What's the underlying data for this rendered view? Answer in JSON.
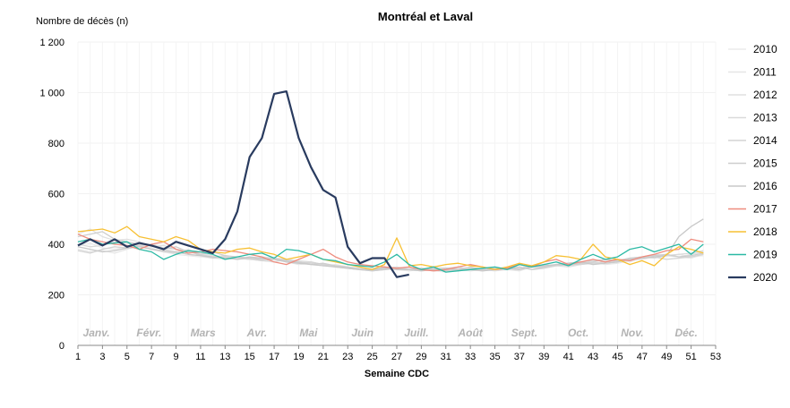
{
  "chart_data": {
    "type": "line",
    "title": "Montréal et Laval",
    "ylabel": "Nombre de décès (n)",
    "xlabel": "Semaine CDC",
    "xlim": [
      1,
      53
    ],
    "ylim": [
      0,
      1200
    ],
    "y_ticks": [
      "0",
      "200",
      "400",
      "600",
      "800",
      "1 000",
      "1 200"
    ],
    "y_tick_values": [
      0,
      200,
      400,
      600,
      800,
      1000,
      1200
    ],
    "x_ticks": [
      1,
      3,
      5,
      7,
      9,
      11,
      13,
      15,
      17,
      19,
      21,
      23,
      25,
      27,
      29,
      31,
      33,
      35,
      37,
      39,
      41,
      43,
      45,
      47,
      49,
      51,
      53
    ],
    "months": [
      {
        "label": "Janv.",
        "week": 2.5
      },
      {
        "label": "Févr.",
        "week": 6.8
      },
      {
        "label": "Mars",
        "week": 11.2
      },
      {
        "label": "Avr.",
        "week": 15.6
      },
      {
        "label": "Mai",
        "week": 19.8
      },
      {
        "label": "Juin",
        "week": 24.2
      },
      {
        "label": "Juill.",
        "week": 28.6
      },
      {
        "label": "Août",
        "week": 33.0
      },
      {
        "label": "Sept.",
        "week": 37.4
      },
      {
        "label": "Oct.",
        "week": 41.8
      },
      {
        "label": "Nov.",
        "week": 46.2
      },
      {
        "label": "Déc.",
        "week": 50.6
      }
    ],
    "legend_position": "right",
    "series": [
      {
        "name": "2010",
        "color": "#ebebeb",
        "values": [
          395,
          405,
          385,
          380,
          390,
          400,
          385,
          370,
          360,
          355,
          350,
          345,
          340,
          345,
          340,
          335,
          340,
          330,
          335,
          325,
          320,
          315,
          310,
          305,
          300,
          310,
          300,
          305,
          300,
          295,
          290,
          300,
          295,
          300,
          310,
          305,
          300,
          310,
          320,
          315,
          325,
          330,
          320,
          335,
          340,
          330,
          345,
          350,
          355,
          360,
          350,
          355
        ]
      },
      {
        "name": "2011",
        "color": "#e6e6e6",
        "values": [
          380,
          370,
          375,
          365,
          380,
          395,
          400,
          380,
          370,
          380,
          360,
          350,
          340,
          345,
          350,
          340,
          345,
          330,
          320,
          325,
          315,
          320,
          310,
          300,
          305,
          310,
          300,
          295,
          300,
          310,
          305,
          300,
          295,
          300,
          310,
          300,
          295,
          310,
          305,
          315,
          320,
          325,
          330,
          320,
          325,
          335,
          340,
          350,
          360,
          350,
          345,
          360
        ]
      },
      {
        "name": "2012",
        "color": "#e0e0e0",
        "values": [
          440,
          460,
          430,
          415,
          420,
          410,
          390,
          395,
          380,
          370,
          365,
          355,
          350,
          345,
          340,
          335,
          330,
          340,
          335,
          330,
          320,
          315,
          305,
          300,
          295,
          300,
          305,
          310,
          300,
          295,
          300,
          305,
          300,
          300,
          295,
          300,
          305,
          310,
          320,
          315,
          310,
          320,
          330,
          340,
          335,
          345,
          350,
          360,
          355,
          350,
          360,
          370
        ]
      },
      {
        "name": "2013",
        "color": "#dadada",
        "values": [
          400,
          390,
          395,
          410,
          405,
          395,
          400,
          385,
          380,
          375,
          360,
          350,
          355,
          345,
          340,
          350,
          345,
          340,
          330,
          325,
          320,
          315,
          310,
          305,
          300,
          305,
          310,
          300,
          295,
          300,
          305,
          310,
          300,
          295,
          300,
          310,
          305,
          315,
          310,
          320,
          325,
          330,
          335,
          340,
          330,
          340,
          350,
          345,
          355,
          360,
          365,
          375
        ]
      },
      {
        "name": "2014",
        "color": "#d4d4d4",
        "values": [
          375,
          365,
          380,
          390,
          385,
          395,
          380,
          370,
          365,
          375,
          355,
          345,
          350,
          340,
          345,
          335,
          340,
          335,
          325,
          330,
          320,
          310,
          305,
          300,
          300,
          310,
          305,
          300,
          300,
          305,
          300,
          295,
          305,
          300,
          305,
          300,
          310,
          300,
          305,
          315,
          320,
          320,
          325,
          330,
          335,
          340,
          345,
          350,
          340,
          345,
          350,
          360
        ]
      },
      {
        "name": "2015",
        "color": "#cecece",
        "values": [
          430,
          440,
          450,
          420,
          410,
          400,
          395,
          380,
          390,
          370,
          360,
          370,
          355,
          350,
          345,
          340,
          345,
          335,
          330,
          320,
          325,
          315,
          310,
          300,
          295,
          300,
          305,
          300,
          305,
          300,
          295,
          300,
          310,
          300,
          300,
          305,
          310,
          300,
          310,
          320,
          315,
          325,
          330,
          340,
          335,
          345,
          350,
          355,
          360,
          350,
          355,
          365
        ]
      },
      {
        "name": "2016",
        "color": "#c8c8c8",
        "values": [
          390,
          380,
          370,
          375,
          385,
          390,
          380,
          375,
          370,
          360,
          355,
          350,
          345,
          340,
          350,
          345,
          340,
          330,
          325,
          320,
          315,
          310,
          305,
          300,
          300,
          305,
          300,
          300,
          295,
          300,
          305,
          300,
          300,
          295,
          300,
          305,
          300,
          310,
          315,
          320,
          325,
          330,
          320,
          325,
          330,
          340,
          345,
          350,
          355,
          430,
          470,
          500
        ]
      },
      {
        "name": "2017",
        "color": "#ee8c7e",
        "values": [
          440,
          420,
          410,
          400,
          395,
          380,
          400,
          410,
          380,
          365,
          370,
          380,
          375,
          370,
          360,
          350,
          330,
          320,
          340,
          360,
          380,
          350,
          330,
          320,
          315,
          310,
          305,
          310,
          300,
          295,
          300,
          310,
          320,
          310,
          300,
          305,
          320,
          310,
          330,
          340,
          320,
          330,
          340,
          330,
          340,
          335,
          350,
          360,
          375,
          380,
          420,
          410
        ]
      },
      {
        "name": "2018",
        "color": "#f7c033",
        "values": [
          450,
          455,
          460,
          445,
          470,
          430,
          420,
          410,
          430,
          415,
          380,
          370,
          365,
          380,
          385,
          370,
          360,
          340,
          350,
          360,
          340,
          330,
          320,
          310,
          300,
          320,
          425,
          315,
          320,
          310,
          320,
          325,
          315,
          310,
          300,
          310,
          325,
          315,
          330,
          355,
          350,
          340,
          400,
          350,
          340,
          320,
          335,
          315,
          360,
          390,
          380,
          365
        ]
      },
      {
        "name": "2019",
        "color": "#2bb9a4",
        "values": [
          410,
          420,
          400,
          405,
          410,
          380,
          370,
          340,
          360,
          375,
          370,
          360,
          340,
          350,
          360,
          365,
          345,
          380,
          375,
          360,
          340,
          335,
          320,
          315,
          310,
          330,
          360,
          320,
          300,
          310,
          290,
          295,
          300,
          305,
          310,
          300,
          320,
          310,
          320,
          330,
          315,
          340,
          360,
          340,
          350,
          380,
          390,
          370,
          385,
          400,
          360,
          400
        ]
      },
      {
        "name": "2020",
        "color": "#293b5f",
        "values": [
          395,
          420,
          395,
          420,
          390,
          405,
          395,
          380,
          410,
          395,
          380,
          365,
          420,
          530,
          745,
          820,
          995,
          1005,
          820,
          705,
          615,
          585,
          390,
          325,
          345,
          345,
          270,
          280
        ]
      }
    ]
  }
}
